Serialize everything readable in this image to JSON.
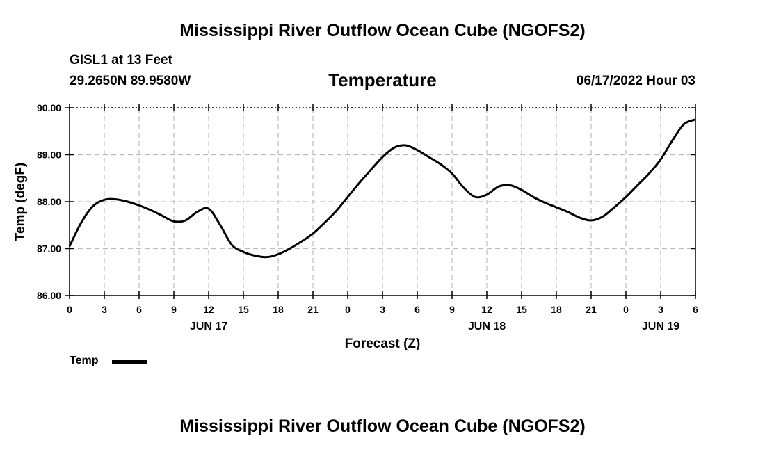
{
  "header": {
    "title": "Mississippi River Outflow Ocean Cube (NGOFS2)",
    "station": "GISL1 at 13 Feet",
    "coordinates": "29.2650N  89.9580W",
    "subtitle": "Temperature",
    "datestamp": "06/17/2022 Hour 03"
  },
  "footer": {
    "title": "Mississippi River Outflow Ocean Cube (NGOFS2)"
  },
  "legend": {
    "label": "Temp"
  },
  "chart_data": {
    "type": "line",
    "title": "Temperature",
    "xlabel": "Forecast (Z)",
    "ylabel": "Temp (degF)",
    "ylim": [
      86.0,
      90.0
    ],
    "xlim": [
      0,
      54
    ],
    "y_ticks": [
      "86.00",
      "87.00",
      "88.00",
      "89.00",
      "90.00"
    ],
    "x_ticks": [
      0,
      3,
      6,
      9,
      12,
      15,
      18,
      21,
      24,
      27,
      30,
      33,
      36,
      39,
      42,
      45,
      48,
      51,
      54
    ],
    "x_tick_labels": [
      "0",
      "3",
      "6",
      "9",
      "12",
      "15",
      "18",
      "21",
      "0",
      "3",
      "6",
      "9",
      "12",
      "15",
      "18",
      "21",
      "0",
      "3",
      "6"
    ],
    "date_labels": [
      {
        "hour": 12,
        "label": "JUN 17"
      },
      {
        "hour": 36,
        "label": "JUN 18"
      },
      {
        "hour": 51,
        "label": "JUN 19"
      }
    ],
    "grid": true,
    "series": [
      {
        "name": "Temp",
        "color": "#000000",
        "x": [
          0,
          1,
          2,
          3,
          4,
          5,
          6,
          7,
          8,
          9,
          10,
          11,
          12,
          13,
          14,
          15,
          16,
          17,
          18,
          19,
          20,
          21,
          22,
          23,
          24,
          25,
          26,
          27,
          28,
          29,
          30,
          31,
          32,
          33,
          34,
          35,
          36,
          37,
          38,
          39,
          40,
          41,
          42,
          43,
          44,
          45,
          46,
          47,
          48,
          49,
          50,
          51,
          52,
          53,
          54
        ],
        "values": [
          87.05,
          87.55,
          87.9,
          88.04,
          88.05,
          88.0,
          87.92,
          87.82,
          87.7,
          87.58,
          87.6,
          87.78,
          87.85,
          87.5,
          87.08,
          86.93,
          86.85,
          86.82,
          86.88,
          87.0,
          87.15,
          87.32,
          87.55,
          87.8,
          88.1,
          88.4,
          88.68,
          88.95,
          89.15,
          89.2,
          89.1,
          88.95,
          88.8,
          88.6,
          88.3,
          88.1,
          88.15,
          88.32,
          88.35,
          88.25,
          88.1,
          87.98,
          87.88,
          87.78,
          87.66,
          87.6,
          87.68,
          87.88,
          88.1,
          88.35,
          88.6,
          88.9,
          89.3,
          89.65,
          89.75
        ]
      }
    ]
  }
}
